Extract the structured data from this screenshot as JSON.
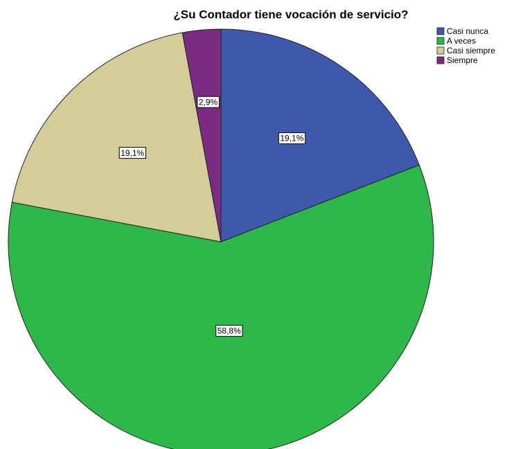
{
  "chart_data": {
    "type": "pie",
    "title": "¿Su Contador tiene vocación de servicio?",
    "categories": [
      "Casi nunca",
      "A veces",
      "Casi siempre",
      "Siempre"
    ],
    "values": [
      19.1,
      58.8,
      19.1,
      2.9
    ],
    "value_labels": [
      "19,1%",
      "58,8%",
      "19,1%",
      "2,9%"
    ],
    "colors": [
      "#3e58ac",
      "#2db84a",
      "#d4cc99",
      "#7b2b80"
    ],
    "legend": "top-right"
  }
}
